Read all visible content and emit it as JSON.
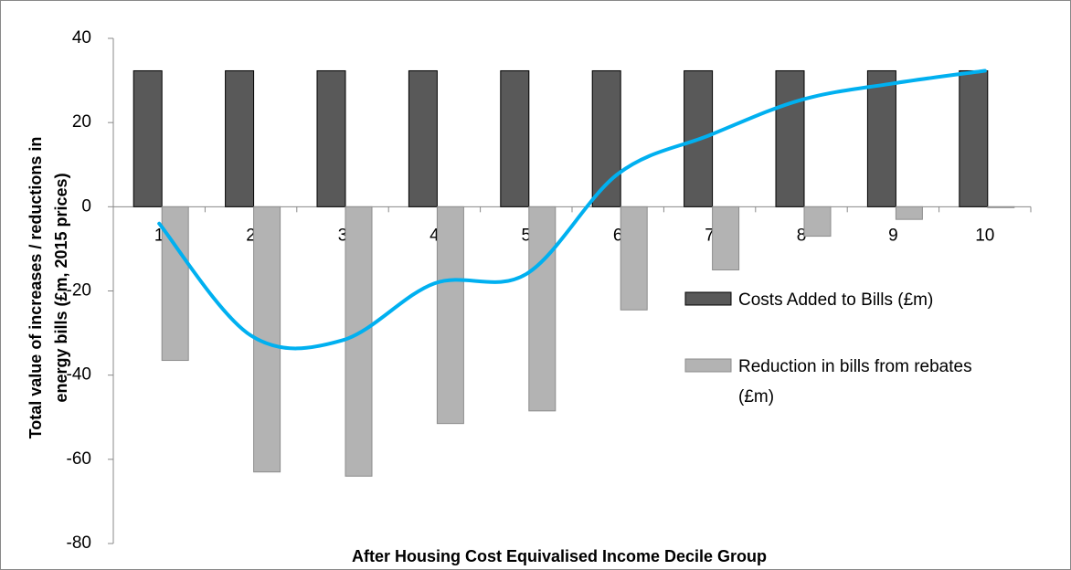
{
  "chart_data": {
    "type": "bar",
    "xlabel": "After Housing Cost Equivalised Income Decile Group",
    "ylabel": [
      "Total value of increases / reductions in",
      "energy bills (£m,  2015 prices)"
    ],
    "categories": [
      "1",
      "2",
      "3",
      "4",
      "5",
      "6",
      "7",
      "8",
      "9",
      "10"
    ],
    "series": [
      {
        "name": "Costs Added to Bills (£m)",
        "color": "#595959",
        "values": [
          32.3,
          32.3,
          32.3,
          32.3,
          32.3,
          32.3,
          32.3,
          32.3,
          32.3,
          32.3
        ]
      },
      {
        "name": "Reduction in bills from rebates (£m)",
        "color": "#b3b3b3",
        "values": [
          -36.5,
          -63,
          -64,
          -51.5,
          -48.5,
          -24.5,
          -15,
          -7,
          -3,
          -0.2
        ]
      },
      {
        "type": "line",
        "color": "#00b0f0",
        "values": [
          -4,
          -30.6,
          -31.7,
          -18.2,
          -16,
          7.8,
          17,
          25.4,
          29.3,
          32.3
        ]
      }
    ],
    "ylim": [
      -80,
      40
    ],
    "yticks": [
      -80,
      -60,
      -40,
      -20,
      0,
      20,
      40
    ],
    "grid": false,
    "legend": "right"
  }
}
